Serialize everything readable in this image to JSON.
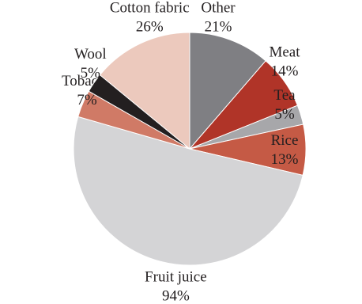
{
  "chart_data": {
    "type": "pie",
    "categories": [
      "Other",
      "Meat",
      "Tea",
      "Rice",
      "Fruit juice",
      "Tobacco",
      "Wool",
      "Cotton fabric"
    ],
    "values": [
      21,
      14,
      5,
      13,
      94,
      7,
      5,
      26
    ],
    "value_labels": [
      "21%",
      "14%",
      "5%",
      "13%",
      "94%",
      "7%",
      "5%",
      "26%"
    ],
    "colors": [
      "#7f7f83",
      "#b03428",
      "#a7a7aa",
      "#c55a45",
      "#d4d4d6",
      "#d07a66",
      "#231f20",
      "#ecc9bd"
    ]
  }
}
